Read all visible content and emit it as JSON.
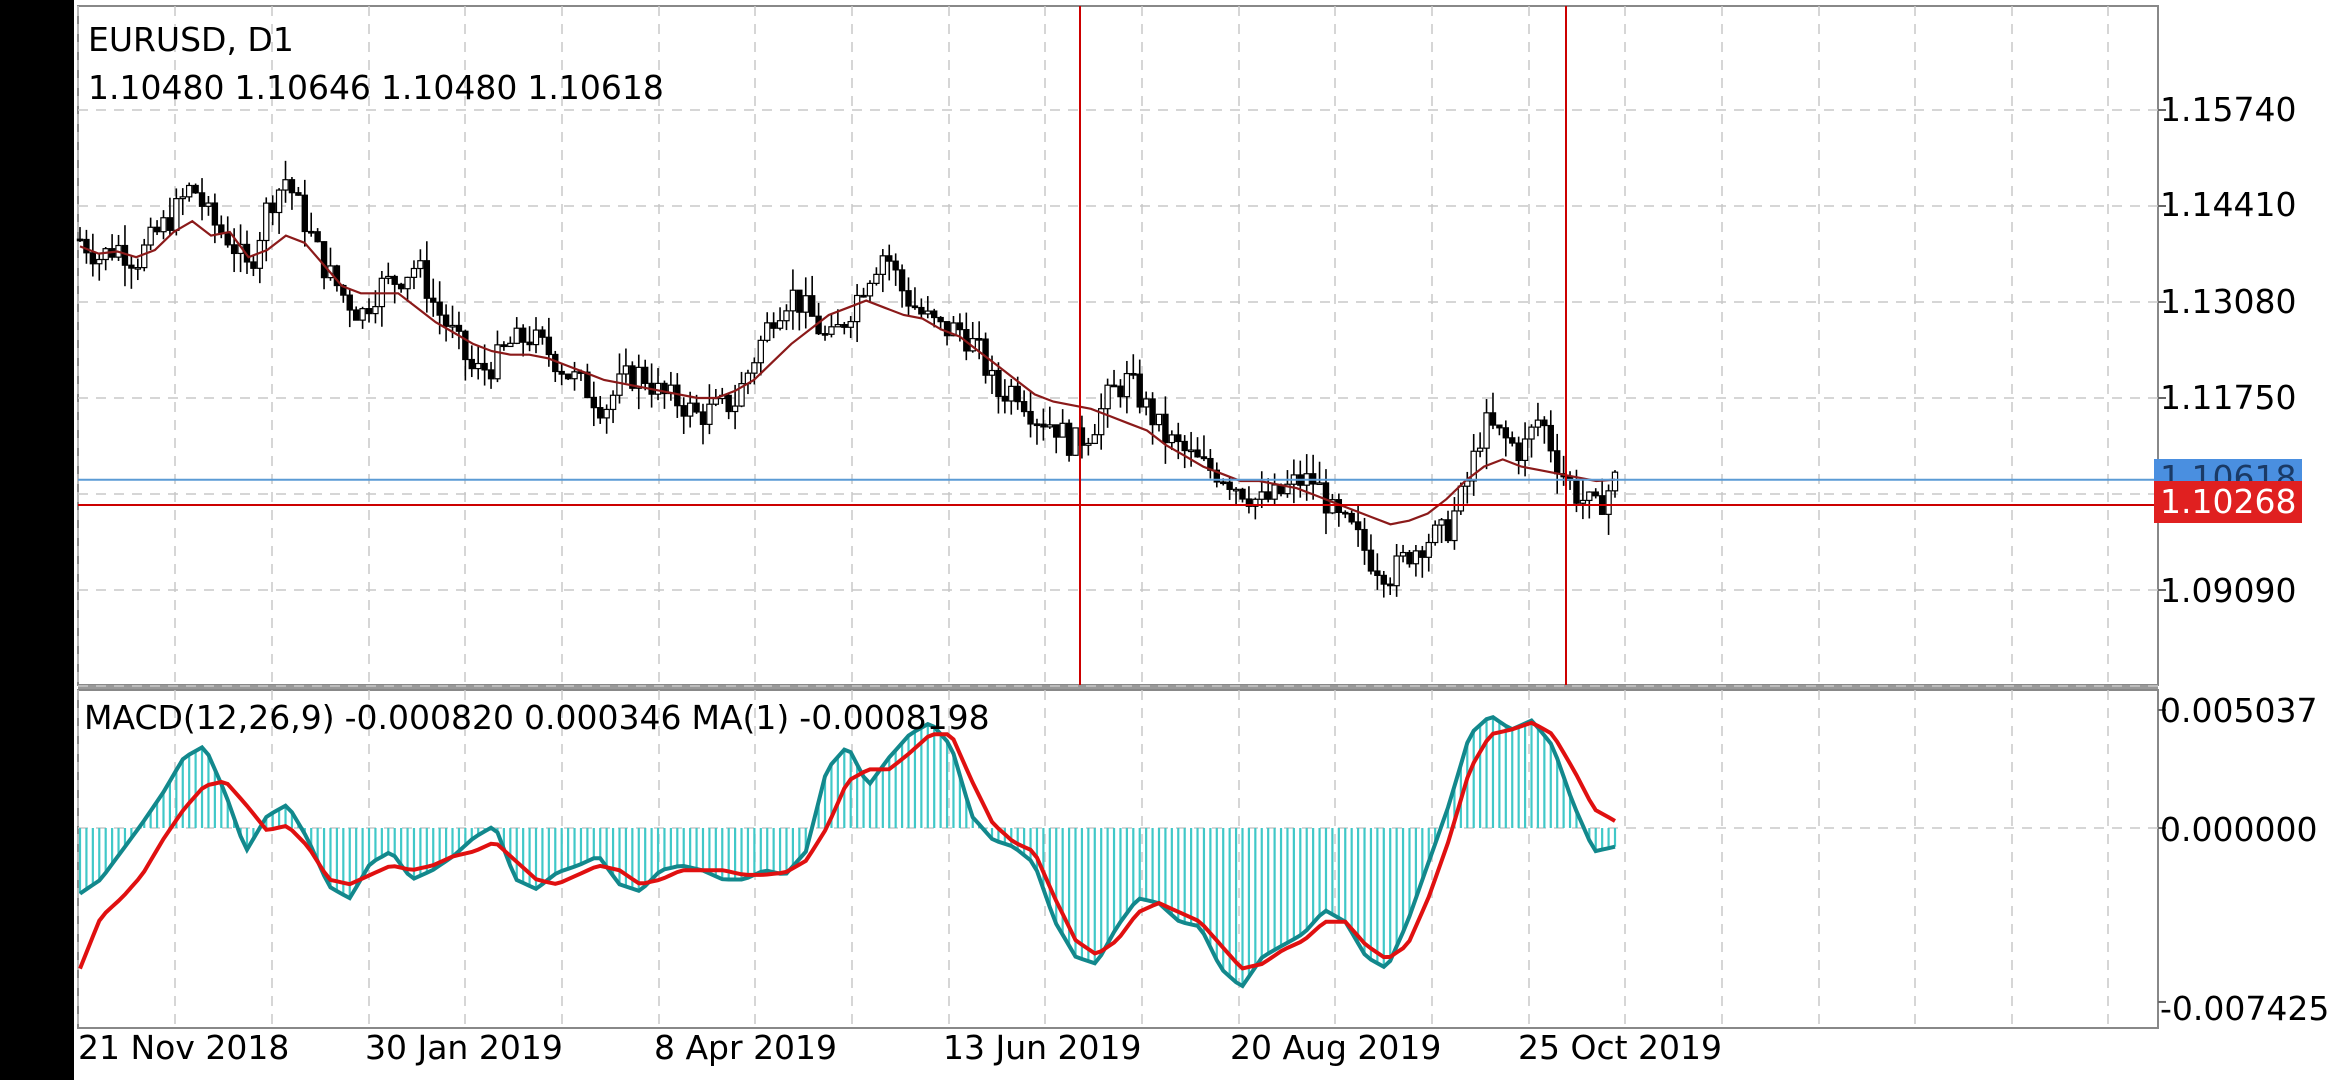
{
  "header": {
    "symbol": "EURUSD, D1",
    "open": "1.10480",
    "high": "1.10646",
    "low": "1.10480",
    "close": "1.10618"
  },
  "macd_header": {
    "name": "MACD(12,26,9)",
    "macd": "-0.000820",
    "signal": "0.000346",
    "ma_label": "MA(1)",
    "ma_value": "-0.0008198"
  },
  "price_axis": {
    "ticks": [
      "1.15740",
      "1.14410",
      "1.13080",
      "1.11750",
      "1.09090"
    ],
    "tick_values": [
      1.1574,
      1.1441,
      1.1308,
      1.1175,
      1.0909
    ],
    "current_price": "1.10618",
    "current_value": 1.10618,
    "crosshair_price": "1.10268",
    "crosshair_value": 1.10268
  },
  "macd_axis": {
    "ticks": [
      "0.005037",
      "0.000000",
      "-0.007425"
    ],
    "tick_values": [
      0.005037,
      0.0,
      -0.007425
    ]
  },
  "time_axis": {
    "labels": [
      "21 Nov 2018",
      "30 Jan 2019",
      "8 Apr 2019",
      "13 Jun 2019",
      "20 Aug 2019",
      "25 Oct 2019"
    ]
  },
  "colors": {
    "bull_candle": "#ffffff",
    "candle_outline": "#000000",
    "moving_average": "#8b1a1a",
    "current_price_line": "#5b9bd5",
    "current_price_tag": "#4a8fe0",
    "crosshair": "#cc0000",
    "macd_histogram": "#40c8c8",
    "macd_line": "#12888c",
    "signal_line": "#e01010",
    "grid": "#c8c8c8"
  },
  "chart_data": [
    {
      "type": "candlestick",
      "title": "EURUSD, D1",
      "x": [
        "21 Nov 2018",
        "30 Jan 2019",
        "8 Apr 2019",
        "13 Jun 2019",
        "20 Aug 2019",
        "25 Oct 2019"
      ],
      "close_path": [
        1.1395,
        1.137,
        1.1385,
        1.1365,
        1.14,
        1.143,
        1.147,
        1.142,
        1.1395,
        1.135,
        1.144,
        1.148,
        1.142,
        1.136,
        1.132,
        1.129,
        1.133,
        1.134,
        1.136,
        1.13,
        1.126,
        1.121,
        1.122,
        1.125,
        1.126,
        1.124,
        1.121,
        1.119,
        1.116,
        1.12,
        1.121,
        1.118,
        1.117,
        1.115,
        1.116,
        1.117,
        1.123,
        1.129,
        1.132,
        1.129,
        1.125,
        1.129,
        1.134,
        1.138,
        1.132,
        1.129,
        1.127,
        1.127,
        1.124,
        1.118,
        1.119,
        1.115,
        1.114,
        1.111,
        1.113,
        1.118,
        1.12,
        1.116,
        1.112,
        1.11,
        1.108,
        1.107,
        1.105,
        1.103,
        1.104,
        1.106,
        1.106,
        1.101,
        1.099,
        1.095,
        1.093,
        1.096,
        1.098,
        1.099,
        1.105,
        1.114,
        1.112,
        1.11,
        1.115,
        1.108,
        1.104,
        1.102,
        1.1062
      ],
      "moving_average": [
        1.1385,
        1.1375,
        1.1378,
        1.137,
        1.138,
        1.1405,
        1.142,
        1.14,
        1.1405,
        1.137,
        1.138,
        1.14,
        1.139,
        1.136,
        1.133,
        1.132,
        1.132,
        1.132,
        1.13,
        1.128,
        1.1265,
        1.125,
        1.124,
        1.1235,
        1.1235,
        1.123,
        1.122,
        1.121,
        1.12,
        1.1195,
        1.119,
        1.1185,
        1.118,
        1.1175,
        1.1175,
        1.1185,
        1.12,
        1.1225,
        1.125,
        1.127,
        1.129,
        1.13,
        1.131,
        1.13,
        1.129,
        1.1285,
        1.127,
        1.126,
        1.124,
        1.122,
        1.12,
        1.118,
        1.117,
        1.1165,
        1.116,
        1.115,
        1.114,
        1.113,
        1.111,
        1.1095,
        1.108,
        1.107,
        1.106,
        1.106,
        1.1055,
        1.105,
        1.104,
        1.103,
        1.102,
        1.101,
        1.1,
        1.1005,
        1.1015,
        1.1035,
        1.106,
        1.108,
        1.109,
        1.108,
        1.1075,
        1.107,
        1.1065,
        1.106,
        1.1062
      ]
    },
    {
      "type": "bar+line",
      "title": "MACD(12,26,9)",
      "ylim": [
        -0.007425,
        0.005037
      ],
      "macd": [
        -0.0028,
        -0.0022,
        -0.001,
        0.0002,
        0.0015,
        0.003,
        0.0035,
        0.0015,
        -0.001,
        0.0005,
        0.001,
        -0.0005,
        -0.0025,
        -0.003,
        -0.0015,
        -0.001,
        -0.0022,
        -0.0018,
        -0.0012,
        -0.0004,
        0.0001,
        -0.0022,
        -0.0026,
        -0.0019,
        -0.0016,
        -0.0012,
        -0.0024,
        -0.0027,
        -0.0018,
        -0.0016,
        -0.0018,
        -0.0022,
        -0.0022,
        -0.0018,
        -0.002,
        -0.001,
        0.0025,
        0.0035,
        0.0018,
        0.003,
        0.004,
        0.0045,
        0.0035,
        0.0005,
        -0.0005,
        -0.0008,
        -0.0015,
        -0.004,
        -0.0055,
        -0.0058,
        -0.0042,
        -0.003,
        -0.0032,
        -0.004,
        -0.0042,
        -0.006,
        -0.0068,
        -0.0055,
        -0.005,
        -0.0045,
        -0.0035,
        -0.004,
        -0.0055,
        -0.006,
        -0.004,
        -0.0015,
        0.001,
        0.004,
        0.0048,
        0.0042,
        0.0046,
        0.0035,
        0.001,
        -0.001,
        -0.0008
      ],
      "signal": [
        -0.006,
        -0.0038,
        -0.003,
        -0.002,
        -0.0005,
        0.0008,
        0.0018,
        0.002,
        0.001,
        -0.0001,
        0.0001,
        -0.0008,
        -0.0022,
        -0.0024,
        -0.002,
        -0.0016,
        -0.0018,
        -0.0016,
        -0.0012,
        -0.001,
        -0.0006,
        -0.0014,
        -0.0022,
        -0.0024,
        -0.002,
        -0.0016,
        -0.0018,
        -0.0024,
        -0.0022,
        -0.0018,
        -0.0018,
        -0.0018,
        -0.002,
        -0.002,
        -0.0019,
        -0.0014,
        0.0,
        0.002,
        0.0025,
        0.0025,
        0.0032,
        0.004,
        0.004,
        0.002,
        0.0002,
        -0.0006,
        -0.001,
        -0.003,
        -0.0048,
        -0.0054,
        -0.0048,
        -0.0036,
        -0.0032,
        -0.0036,
        -0.004,
        -0.005,
        -0.006,
        -0.0058,
        -0.0052,
        -0.0048,
        -0.004,
        -0.004,
        -0.005,
        -0.0056,
        -0.005,
        -0.003,
        -0.0005,
        0.0025,
        0.004,
        0.0042,
        0.0045,
        0.004,
        0.0025,
        0.0008,
        0.0003
      ]
    }
  ]
}
